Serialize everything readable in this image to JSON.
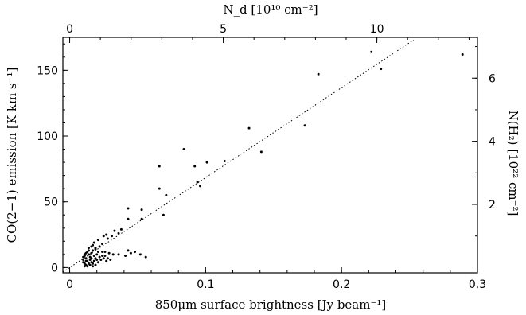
{
  "chart_data": {
    "type": "scatter",
    "xlabel": "850μm surface brightness [Jy beam⁻¹]",
    "ylabel": "CO(2−1) emission  [K km s⁻¹]",
    "x2label": "N_d [10¹⁰ cm⁻²]",
    "y2label": "N(H₂)  [10²² cm⁻²]",
    "xlim": [
      -0.005,
      0.3
    ],
    "ylim": [
      -4,
      175
    ],
    "x_ticks": [
      0,
      0.1,
      0.2,
      0.3
    ],
    "x_tick_labels": [
      "0",
      "0.1",
      "0.2",
      "0.3"
    ],
    "y_ticks": [
      0,
      50,
      100,
      150
    ],
    "y_tick_labels": [
      "0",
      "50",
      "100",
      "150"
    ],
    "top_axis": {
      "ticks": [
        0,
        5,
        10
      ],
      "tick_labels": [
        "0",
        "5",
        "10"
      ],
      "x_per_unit": 0.0226
    },
    "right_axis": {
      "ticks": [
        2,
        4,
        6
      ],
      "tick_labels": [
        "2",
        "4",
        "6"
      ],
      "y_per_unit": 24.0
    },
    "fit_line": {
      "style": "dotted",
      "x": [
        -0.005,
        0.253
      ],
      "y": [
        -3.4,
        173
      ]
    },
    "grid": false,
    "points": [
      [
        0.289,
        162
      ],
      [
        0.222,
        164
      ],
      [
        0.229,
        151
      ],
      [
        0.183,
        147
      ],
      [
        0.173,
        108
      ],
      [
        0.132,
        106
      ],
      [
        0.141,
        88
      ],
      [
        0.114,
        81
      ],
      [
        0.101,
        80
      ],
      [
        0.084,
        90
      ],
      [
        0.092,
        77
      ],
      [
        0.096,
        62
      ],
      [
        0.094,
        65
      ],
      [
        0.066,
        77
      ],
      [
        0.066,
        60
      ],
      [
        0.071,
        55
      ],
      [
        0.069,
        40
      ],
      [
        0.053,
        44
      ],
      [
        0.053,
        37
      ],
      [
        0.043,
        45
      ],
      [
        0.043,
        37
      ],
      [
        0.038,
        29
      ],
      [
        0.033,
        28
      ],
      [
        0.036,
        26
      ],
      [
        0.027,
        25
      ],
      [
        0.025,
        24
      ],
      [
        0.031,
        24
      ],
      [
        0.028,
        22
      ],
      [
        0.021,
        21
      ],
      [
        0.018,
        19
      ],
      [
        0.024,
        18
      ],
      [
        0.022,
        16
      ],
      [
        0.016,
        16
      ],
      [
        0.019,
        14
      ],
      [
        0.017,
        13
      ],
      [
        0.024,
        12
      ],
      [
        0.029,
        11
      ],
      [
        0.032,
        10
      ],
      [
        0.036,
        10
      ],
      [
        0.041,
        9
      ],
      [
        0.045,
        11
      ],
      [
        0.052,
        10
      ],
      [
        0.056,
        8
      ],
      [
        0.043,
        13
      ],
      [
        0.048,
        12
      ],
      [
        0.013,
        12
      ],
      [
        0.014,
        10
      ],
      [
        0.011,
        9
      ],
      [
        0.012,
        7
      ],
      [
        0.01,
        6
      ],
      [
        0.01,
        4
      ],
      [
        0.011,
        3
      ],
      [
        0.012,
        2
      ],
      [
        0.013,
        5
      ],
      [
        0.015,
        6
      ],
      [
        0.016,
        4
      ],
      [
        0.017,
        3
      ],
      [
        0.018,
        5
      ],
      [
        0.019,
        7
      ],
      [
        0.02,
        6
      ],
      [
        0.021,
        4
      ],
      [
        0.022,
        8
      ],
      [
        0.023,
        6
      ],
      [
        0.025,
        7
      ],
      [
        0.026,
        9
      ],
      [
        0.027,
        5
      ],
      [
        0.028,
        7
      ],
      [
        0.03,
        6
      ],
      [
        0.012,
        11
      ],
      [
        0.014,
        13
      ],
      [
        0.015,
        8
      ],
      [
        0.016,
        11
      ],
      [
        0.018,
        9
      ],
      [
        0.02,
        10
      ],
      [
        0.021,
        12
      ],
      [
        0.011,
        1
      ],
      [
        0.013,
        1
      ],
      [
        0.015,
        2
      ],
      [
        0.017,
        1
      ],
      [
        0.019,
        2
      ],
      [
        0.014,
        3
      ],
      [
        0.016,
        7
      ],
      [
        0.012,
        5
      ],
      [
        0.01,
        8
      ],
      [
        0.011,
        10
      ],
      [
        0.024,
        9
      ],
      [
        0.026,
        12
      ],
      [
        0.019,
        15
      ],
      [
        0.017,
        17
      ],
      [
        0.014,
        15
      ]
    ]
  }
}
